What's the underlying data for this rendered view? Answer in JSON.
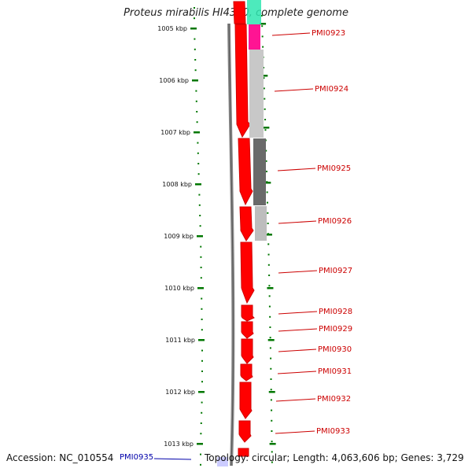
{
  "title": "Proteus mirabilis HI4320, complete genome",
  "axis_labels": [
    "1005 kbp",
    "1006 kbp",
    "1007 kbp",
    "1008 kbp",
    "1009 kbp",
    "1010 kbp",
    "1011 kbp",
    "1012 kbp",
    "1013 kbp"
  ],
  "genes": [
    {
      "id": "PMI0923",
      "color": "#cc0000"
    },
    {
      "id": "PMI0924",
      "color": "#cc0000"
    },
    {
      "id": "PMI0925",
      "color": "#cc0000"
    },
    {
      "id": "PMI0926",
      "color": "#cc0000"
    },
    {
      "id": "PMI0927",
      "color": "#cc0000"
    },
    {
      "id": "PMI0928",
      "color": "#cc0000"
    },
    {
      "id": "PMI0929",
      "color": "#cc0000"
    },
    {
      "id": "PMI0930",
      "color": "#cc0000"
    },
    {
      "id": "PMI0931",
      "color": "#cc0000"
    },
    {
      "id": "PMI0932",
      "color": "#cc0000"
    },
    {
      "id": "PMI0933",
      "color": "#cc0000"
    }
  ],
  "bottom_gene": {
    "id": "PMI0935",
    "color": "#0000aa"
  },
  "footer": {
    "accession": "Accession: NC_010554",
    "meta": "Topology: circular; Length: 4,063,606 bp; Genes: 3,729"
  },
  "colors": {
    "gene_red": "#ff0000",
    "gene_label": "#cc0000",
    "tick_green": "#007700",
    "backbone": "#666666",
    "magenta": "#ff1493",
    "mint": "#2ee6b0",
    "light_gray": "#c8c8c8",
    "dark_gray": "#666666"
  }
}
